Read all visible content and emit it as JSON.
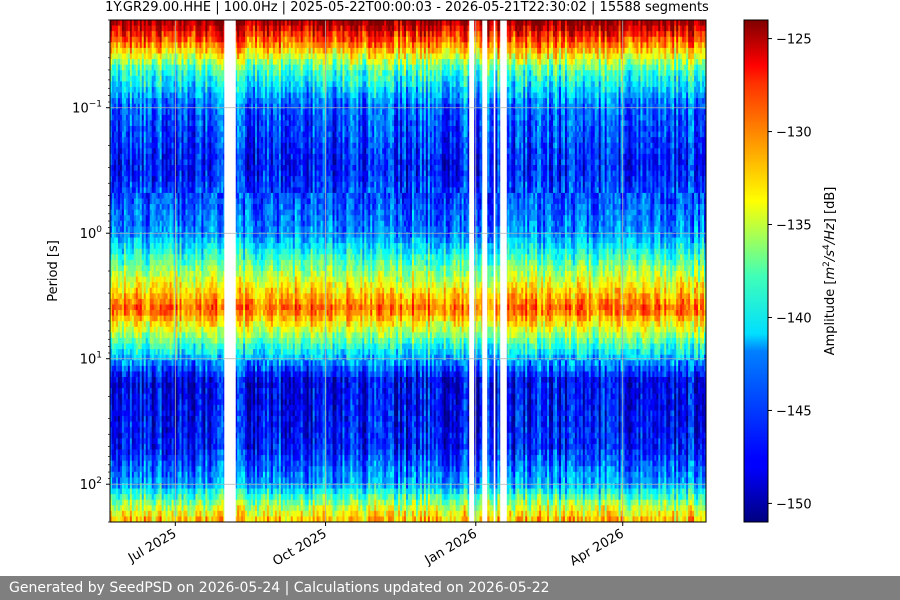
{
  "chart_data": {
    "type": "heatmap",
    "title": "1Y.GR29.00.HHE | 100.0Hz | 2025-05-22T00:00:03 - 2026-05-21T22:30:02 | 15588 segments",
    "ylabel": "Period [s]",
    "y_scale": "log",
    "y_inverted": true,
    "ylim": [
      0.02,
      200
    ],
    "y_ticks": [
      {
        "value": 0.1,
        "base": "10",
        "exp": "−1"
      },
      {
        "value": 1,
        "base": "10",
        "exp": "0"
      },
      {
        "value": 10,
        "base": "10",
        "exp": "1"
      },
      {
        "value": 100,
        "base": "10",
        "exp": "2"
      }
    ],
    "x_type": "date",
    "xlim": [
      "2025-05-22",
      "2026-05-22"
    ],
    "x_ticks": [
      {
        "date": "2025-07-01",
        "label": "Jul 2025"
      },
      {
        "date": "2025-10-01",
        "label": "Oct 2025"
      },
      {
        "date": "2026-01-01",
        "label": "Jan 2026"
      },
      {
        "date": "2026-04-01",
        "label": "Apr 2026"
      }
    ],
    "grid": true,
    "data_gaps": [
      {
        "start": "2025-07-31",
        "end": "2025-08-07"
      },
      {
        "start": "2025-12-28",
        "end": "2025-12-31"
      },
      {
        "start": "2026-01-05",
        "end": "2026-01-08"
      },
      {
        "start": "2026-01-12",
        "end": "2026-01-13"
      },
      {
        "start": "2026-01-16",
        "end": "2026-01-20"
      }
    ],
    "amplitude_profile": [
      {
        "period": 0.02,
        "amplitude_db": -124
      },
      {
        "period": 0.03,
        "amplitude_db": -130
      },
      {
        "period": 0.05,
        "amplitude_db": -139
      },
      {
        "period": 0.1,
        "amplitude_db": -145
      },
      {
        "period": 0.3,
        "amplitude_db": -147
      },
      {
        "period": 1,
        "amplitude_db": -144
      },
      {
        "period": 2,
        "amplitude_db": -137
      },
      {
        "period": 4,
        "amplitude_db": -130
      },
      {
        "period": 8,
        "amplitude_db": -140
      },
      {
        "period": 15,
        "amplitude_db": -148
      },
      {
        "period": 50,
        "amplitude_db": -147
      },
      {
        "period": 100,
        "amplitude_db": -143
      },
      {
        "period": 150,
        "amplitude_db": -136
      },
      {
        "period": 200,
        "amplitude_db": -132
      }
    ],
    "colorbar": {
      "label": "Amplitude [m²/s⁴/Hz] [dB]",
      "label_parts": {
        "m": "m",
        "exp2": "2",
        "slash1": "/",
        "s": "s",
        "exp4": "4",
        "slash2": "/",
        "hz": "Hz",
        "prefix": "Amplitude [",
        "suffix": "] [dB]"
      },
      "range": [
        -151,
        -124
      ],
      "ticks": [
        -125,
        -130,
        -135,
        -140,
        -145,
        -150
      ],
      "tick_labels": [
        "−125",
        "−130",
        "−135",
        "−140",
        "−145",
        "−150"
      ],
      "colormap": "jet"
    }
  },
  "footer": {
    "text": "Generated by SeedPSD on 2026-05-24 | Calculations updated on 2026-05-22"
  }
}
